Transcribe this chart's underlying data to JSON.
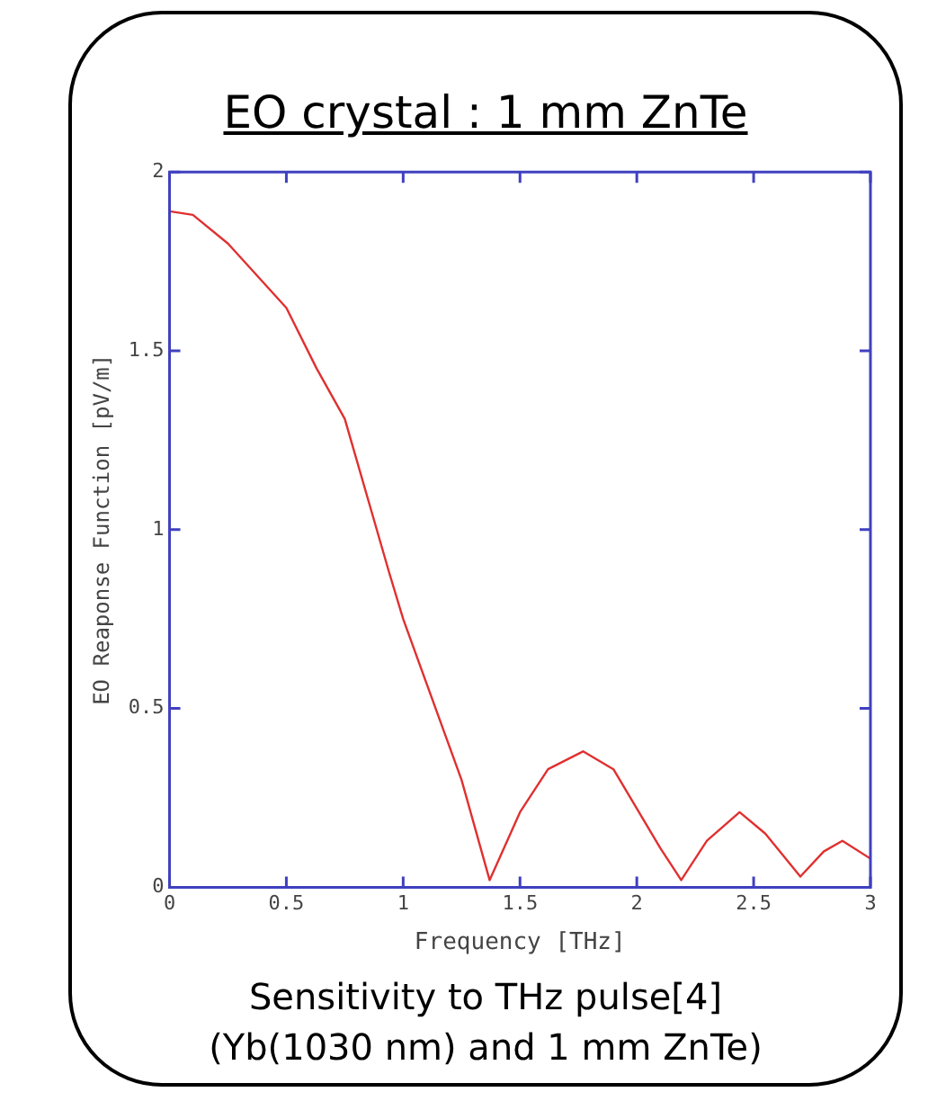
{
  "chart_data": {
    "type": "line",
    "title": "EO crystal : 1 mm ZnTe",
    "xlabel": "Frequency [THz]",
    "ylabel": "EO Reaponse Function [pV/m]",
    "annotations": [
      "Sensitivity to THz pulse[4]",
      "(Yb(1030 nm) and 1 mm ZnTe)"
    ],
    "x": [
      0,
      0.1,
      0.25,
      0.5,
      0.63,
      0.75,
      0.94,
      1.0,
      1.25,
      1.37,
      1.5,
      1.62,
      1.77,
      1.9,
      2.0,
      2.1,
      2.19,
      2.3,
      2.44,
      2.55,
      2.7,
      2.8,
      2.88,
      3.0
    ],
    "series": [
      {
        "color": "#e03030",
        "values": [
          1.89,
          1.88,
          1.8,
          1.62,
          1.45,
          1.31,
          0.88,
          0.75,
          0.3,
          0.02,
          0.21,
          0.33,
          0.38,
          0.33,
          0.22,
          0.11,
          0.02,
          0.13,
          0.21,
          0.15,
          0.03,
          0.1,
          0.13,
          0.08
        ]
      }
    ],
    "xlim": [
      0,
      3
    ],
    "ylim": [
      0,
      2
    ],
    "xticks": [
      0,
      0.5,
      1,
      1.5,
      2,
      2.5,
      3
    ],
    "yticks": [
      0,
      0.5,
      1,
      1.5,
      2
    ],
    "grid": false,
    "marker": "none"
  }
}
